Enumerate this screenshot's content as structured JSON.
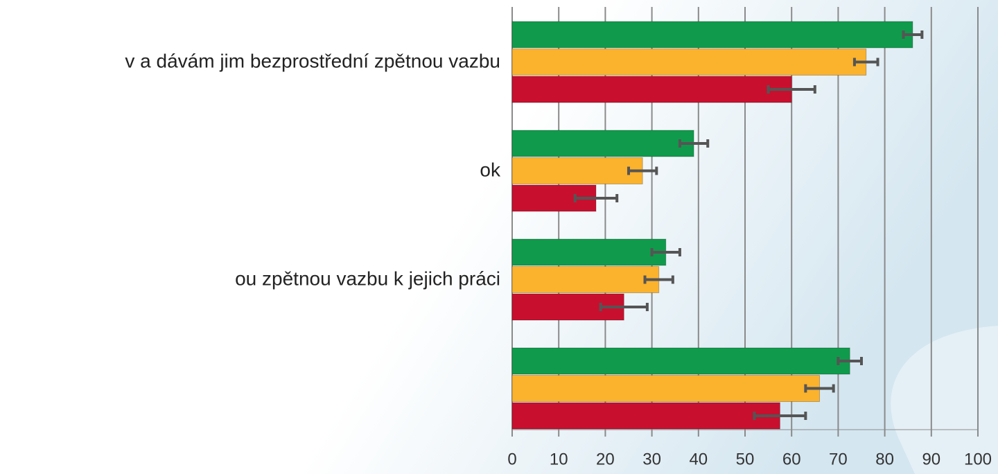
{
  "chart_data": {
    "type": "hbar",
    "categories": [
      "v a dávám jim bezprostřední zpětnou vazbu",
      "ok",
      "ou zpětnou vazbu k jejich práci",
      null
    ],
    "series": [
      {
        "color": "#0f9b4b",
        "values": [
          86,
          39,
          33,
          72.5
        ],
        "errors": [
          2,
          3,
          3,
          2.5
        ]
      },
      {
        "color": "#fbb22c",
        "values": [
          76,
          28,
          31.5,
          66
        ],
        "errors": [
          2.5,
          3,
          3,
          3
        ]
      },
      {
        "color": "#c8102e",
        "values": [
          60,
          18,
          24,
          57.5
        ],
        "errors": [
          5,
          4.5,
          5,
          5.5
        ]
      }
    ],
    "xlim": [
      0,
      100
    ],
    "xticks": [
      0,
      10,
      20,
      30,
      40,
      50,
      60,
      70,
      80,
      90,
      100
    ],
    "grid": true
  }
}
